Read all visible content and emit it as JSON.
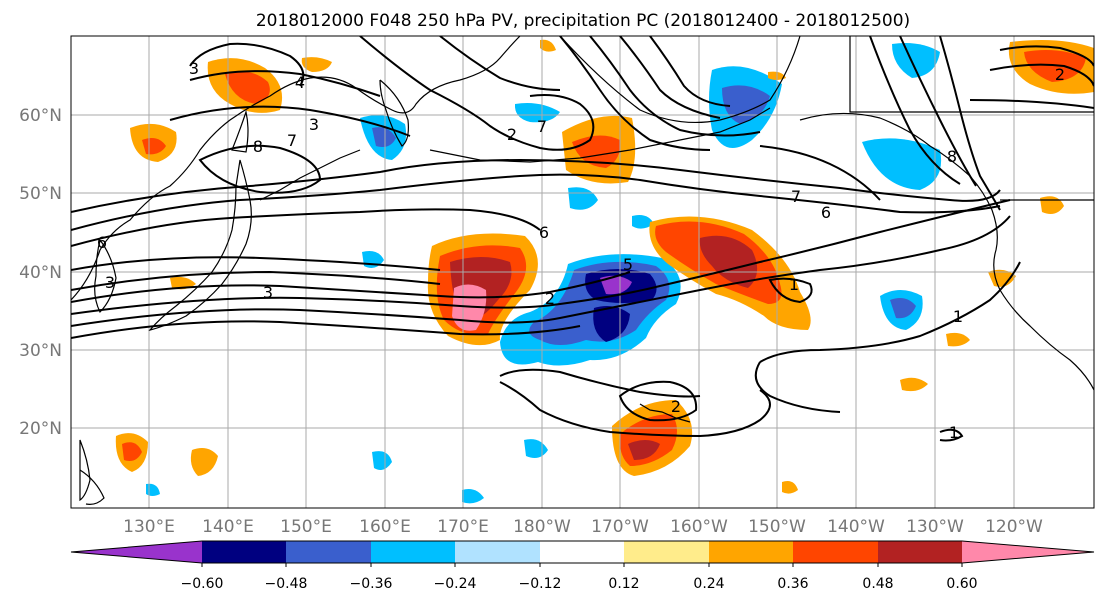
{
  "title": "2018012000 F048 250 hPa PV, precipitation PC (2018012400 - 2018012500)",
  "lat_labels": [
    "60°N",
    "50°N",
    "40°N",
    "30°N",
    "20°N"
  ],
  "lon_labels": [
    "130°E",
    "140°E",
    "150°E",
    "160°E",
    "170°E",
    "180°W",
    "170°W",
    "160°W",
    "150°W",
    "140°W",
    "130°W",
    "120°W"
  ],
  "colorbar": {
    "ticks": [
      "−0.60",
      "−0.48",
      "−0.36",
      "−0.24",
      "−0.12",
      "0.12",
      "0.24",
      "0.36",
      "0.48",
      "0.60"
    ],
    "colors": [
      "#9933cc",
      "#000080",
      "#3a5fcd",
      "#00bfff",
      "#b0e2ff",
      "#ffffff",
      "#ffec8b",
      "#ffa500",
      "#ff4500",
      "#b22222",
      "#ff88aa"
    ]
  },
  "contour_labels": [
    "3",
    "4",
    "3",
    "8",
    "7",
    "2",
    "6",
    "7",
    "6",
    "6",
    "3",
    "2",
    "5",
    "1",
    "1",
    "2",
    "1",
    "8",
    "2",
    "7",
    "3"
  ]
}
